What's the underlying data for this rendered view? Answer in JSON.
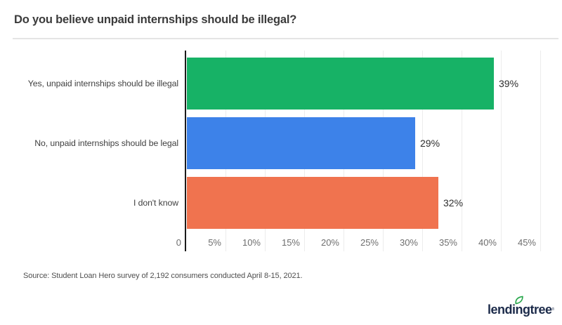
{
  "title": "Do you believe unpaid internships should be illegal?",
  "chart_data": {
    "type": "bar",
    "orientation": "horizontal",
    "title": "Do you believe unpaid internships should be illegal?",
    "categories": [
      "Yes, unpaid internships should be illegal",
      "No, unpaid internships should be legal",
      "I don't know"
    ],
    "values": [
      39,
      29,
      32
    ],
    "value_labels": [
      "39%",
      "29%",
      "32%"
    ],
    "bar_colors": [
      "#17b266",
      "#3d82e9",
      "#f0734f"
    ],
    "xlabel": "",
    "ylabel": "",
    "xlim": [
      0,
      45
    ],
    "x_tick_values": [
      0,
      5,
      10,
      15,
      20,
      25,
      30,
      35,
      40,
      45
    ],
    "x_tick_labels": [
      "0",
      "5%",
      "10%",
      "15%",
      "20%",
      "25%",
      "30%",
      "35%",
      "40%",
      "45%"
    ],
    "grid": true,
    "legend": false
  },
  "source": {
    "text": "Source: Student Loan Hero survey of 2,192 consumers conducted April 8-15, 2021."
  },
  "logo": {
    "brand": "lendingtree",
    "registered": "®",
    "leaf_icon": "leaf-icon",
    "text_color": "#1c2b4a",
    "leaf_color": "#2aa84d"
  },
  "colors": {
    "background": "#ffffff",
    "axis_line": "#1b1b1b",
    "gridline": "#ececec",
    "divider": "#e4e4e4",
    "title_text": "#3b3b3b",
    "category_text": "#3f3f3f",
    "value_text": "#2e2e2e",
    "tick_text": "#6e6e6e",
    "source_text": "#4f4f4f"
  }
}
